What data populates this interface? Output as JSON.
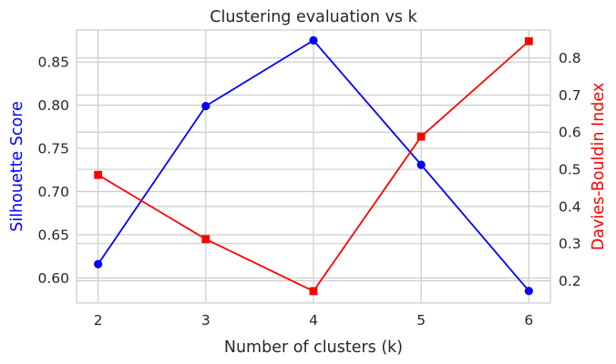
{
  "chart_data": {
    "type": "line",
    "title": "Clustering evaluation vs k",
    "xlabel": "Number of clusters (k)",
    "x": [
      2,
      3,
      4,
      5,
      6
    ],
    "xlim": [
      1.8,
      6.2
    ],
    "xticks": [
      "2",
      "3",
      "4",
      "5",
      "6"
    ],
    "grid": true,
    "y_left": {
      "label": "Silhouette Score",
      "color": "#0000ff",
      "lim": [
        0.571,
        0.887
      ],
      "ticks": [
        "0.60",
        "0.65",
        "0.70",
        "0.75",
        "0.80",
        "0.85"
      ],
      "tick_values": [
        0.6,
        0.65,
        0.7,
        0.75,
        0.8,
        0.85
      ]
    },
    "y_right": {
      "label": "Davies-Bouldin Index",
      "color": "#ff0000",
      "lim": [
        0.14,
        0.875
      ],
      "ticks": [
        "0.2",
        "0.3",
        "0.4",
        "0.5",
        "0.6",
        "0.7",
        "0.8"
      ],
      "tick_values": [
        0.2,
        0.3,
        0.4,
        0.5,
        0.6,
        0.7,
        0.8
      ]
    },
    "series": [
      {
        "axis": "left",
        "color": "#0000ff",
        "marker": "circle",
        "values": [
          0.616,
          0.799,
          0.875,
          0.731,
          0.585
        ]
      },
      {
        "axis": "right",
        "color": "#ff0000",
        "marker": "square",
        "values": [
          0.485,
          0.312,
          0.172,
          0.588,
          0.845
        ]
      }
    ]
  }
}
